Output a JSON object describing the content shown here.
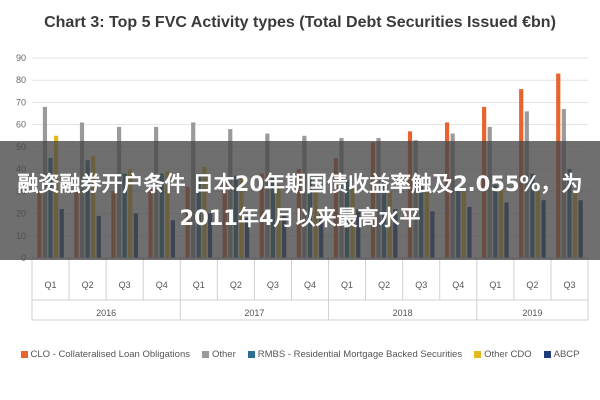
{
  "chart_data": {
    "type": "bar",
    "title": "Chart 3: Top 5 FVC Activity types (Total Debt Securities Issued €bn)",
    "categories": [
      "Q1",
      "Q2",
      "Q3",
      "Q4",
      "Q1",
      "Q2",
      "Q3",
      "Q4",
      "Q1",
      "Q2",
      "Q3",
      "Q4",
      "Q1",
      "Q2",
      "Q3"
    ],
    "years": [
      {
        "label": "2016",
        "span": [
          0,
          3
        ]
      },
      {
        "label": "2017",
        "span": [
          4,
          7
        ]
      },
      {
        "label": "2018",
        "span": [
          8,
          11
        ]
      },
      {
        "label": "2019",
        "span": [
          12,
          14
        ]
      }
    ],
    "ylim": [
      0,
      90
    ],
    "yticks": [
      0,
      10,
      20,
      30,
      40,
      50,
      60,
      70,
      80,
      90
    ],
    "grid": true,
    "legend_position": "bottom",
    "series": [
      {
        "name": "CLO - Collateralised Loan Obligations",
        "color": "#e8632d",
        "values": [
          30,
          31,
          30,
          31,
          32,
          36,
          38,
          40,
          45,
          52,
          57,
          61,
          68,
          76,
          83
        ]
      },
      {
        "name": "Other",
        "color": "#9a9a9a",
        "values": [
          68,
          61,
          59,
          59,
          61,
          58,
          56,
          55,
          54,
          54,
          53,
          56,
          59,
          66,
          67
        ]
      },
      {
        "name": "RMBS - Residential Mortgage Backed Securities",
        "color": "#2a6f8f",
        "values": [
          45,
          44,
          38,
          38,
          38,
          37,
          36,
          36,
          35,
          36,
          34,
          32,
          33,
          38,
          40
        ]
      },
      {
        "name": "Other CDO",
        "color": "#e6b820",
        "values": [
          55,
          46,
          40,
          39,
          41,
          36,
          33,
          31,
          32,
          30,
          31,
          30,
          31,
          30,
          29
        ]
      },
      {
        "name": "ABCP",
        "color": "#1f3c7a",
        "values": [
          22,
          19,
          20,
          17,
          20,
          18,
          19,
          20,
          22,
          22,
          21,
          23,
          25,
          26,
          26
        ]
      }
    ]
  },
  "overlay": {
    "headline": "融资融券开户条件 日本20年期国债收益率触及2.055%，为2011年4月以来最高水平"
  }
}
